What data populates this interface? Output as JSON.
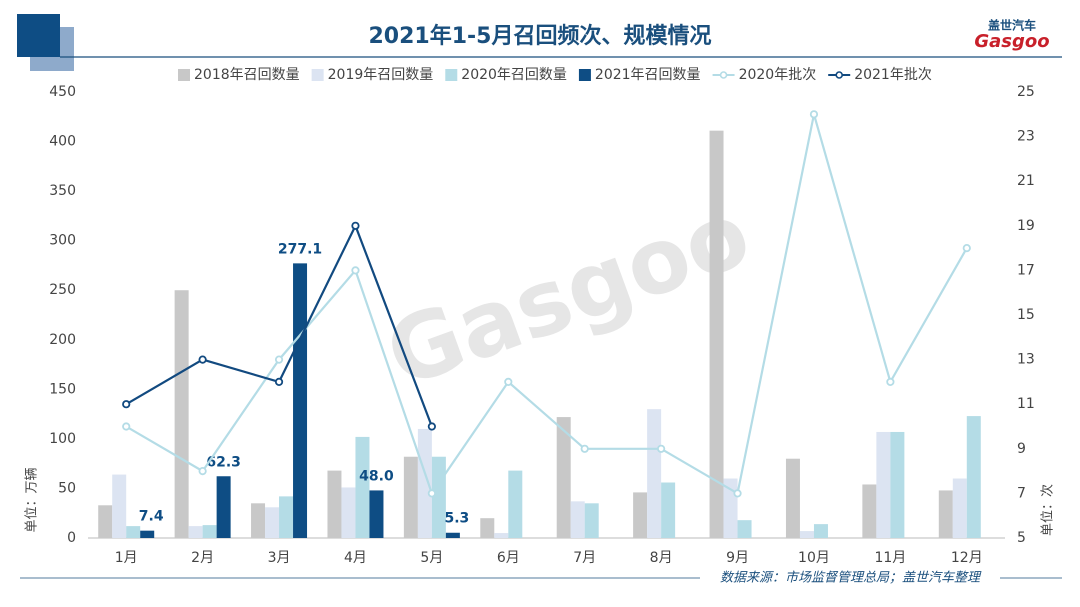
{
  "logo": {
    "text": "盖世汽车",
    "brand": "Gasgoo"
  },
  "chart_data": {
    "type": "bar",
    "title": "2021年1-5月召回频次、规模情况",
    "categories": [
      "1月",
      "2月",
      "3月",
      "4月",
      "5月",
      "6月",
      "7月",
      "8月",
      "9月",
      "10月",
      "11月",
      "12月"
    ],
    "series": [
      {
        "name": "2018年召回数量",
        "type": "bar",
        "color": "#c8c8c8",
        "values": [
          33,
          250,
          35,
          68,
          82,
          20,
          122,
          46,
          411,
          80,
          54,
          48
        ]
      },
      {
        "name": "2019年召回数量",
        "type": "bar",
        "color": "#dce4f2",
        "values": [
          64,
          12,
          31,
          51,
          110,
          5,
          37,
          130,
          60,
          7,
          107,
          60
        ]
      },
      {
        "name": "2020年召回数量",
        "type": "bar",
        "color": "#b4dce6",
        "values": [
          12,
          13,
          42,
          102,
          82,
          68,
          35,
          56,
          18,
          14,
          107,
          123
        ]
      },
      {
        "name": "2021年召回数量",
        "type": "bar",
        "color": "#0e4d84",
        "values": [
          7.4,
          62.3,
          277.1,
          48,
          5.3,
          null,
          null,
          null,
          null,
          null,
          null,
          null
        ],
        "value_labels": [
          "7.4",
          "62.3",
          "277.1",
          "48.0",
          "5.3",
          null,
          null,
          null,
          null,
          null,
          null,
          null
        ]
      },
      {
        "name": "2020年批次",
        "type": "line",
        "axis": "y2",
        "color": "#b4dce6",
        "values": [
          10,
          8,
          13,
          17,
          7,
          12,
          9,
          9,
          7,
          24,
          12,
          18
        ]
      },
      {
        "name": "2021年批次",
        "type": "line",
        "axis": "y2",
        "color": "#124a80",
        "values": [
          11,
          13,
          12,
          19,
          10,
          null,
          null,
          null,
          null,
          null,
          null,
          null
        ]
      }
    ],
    "ylim": [
      0,
      450
    ],
    "yticks": [
      0,
      50,
      100,
      150,
      200,
      250,
      300,
      350,
      400,
      450
    ],
    "y2lim": [
      5,
      25
    ],
    "y2ticks": [
      5,
      7,
      9,
      11,
      13,
      15,
      17,
      19,
      21,
      23,
      25
    ],
    "ylabel": "单位：万辆",
    "y2label": "单位：次",
    "source": "数据来源：市场监督管理总局；盖世汽车整理"
  }
}
